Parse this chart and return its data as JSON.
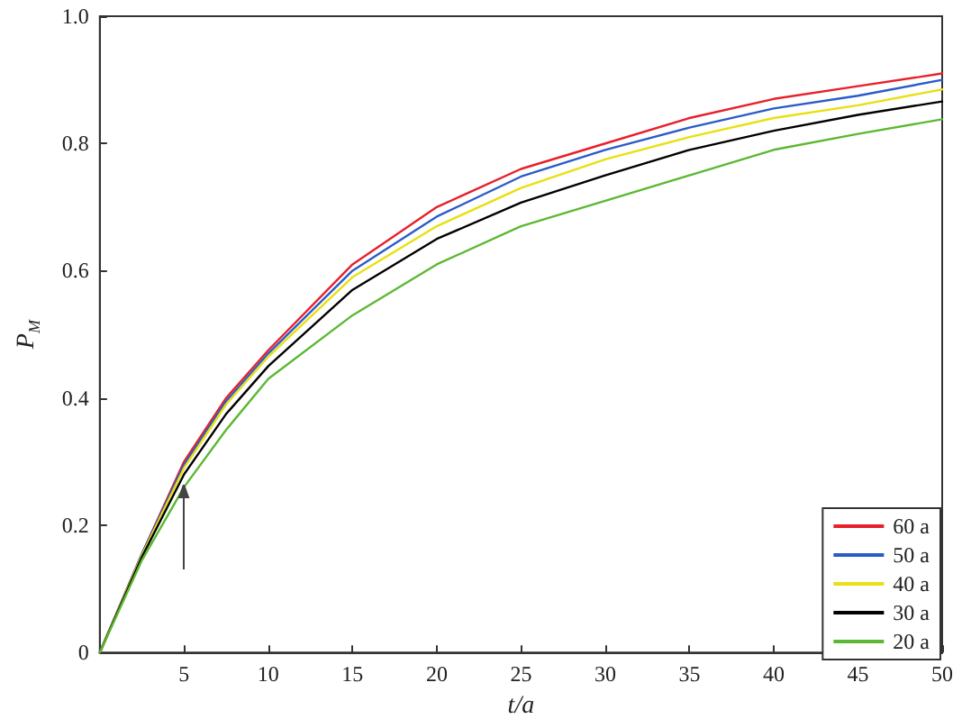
{
  "chart_data": {
    "type": "line",
    "xlabel": "t/a",
    "ylabel": "P$_{M}$",
    "x": [
      0,
      2.5,
      5,
      7.5,
      10,
      15,
      20,
      25,
      30,
      35,
      40,
      45,
      50
    ],
    "series": [
      {
        "name": "60 a",
        "color": "#e8202a",
        "values": [
          0,
          0.155,
          0.3,
          0.4,
          0.475,
          0.61,
          0.7,
          0.76,
          0.8,
          0.84,
          0.87,
          0.89,
          0.91
        ]
      },
      {
        "name": "50 a",
        "color": "#2a5cc8",
        "values": [
          0,
          0.155,
          0.295,
          0.395,
          0.47,
          0.6,
          0.685,
          0.748,
          0.79,
          0.825,
          0.855,
          0.875,
          0.9
        ]
      },
      {
        "name": "40 a",
        "color": "#e8e010",
        "values": [
          0,
          0.153,
          0.29,
          0.39,
          0.465,
          0.59,
          0.67,
          0.73,
          0.775,
          0.81,
          0.84,
          0.86,
          0.885
        ]
      },
      {
        "name": "30 a",
        "color": "#000000",
        "values": [
          0,
          0.15,
          0.28,
          0.375,
          0.45,
          0.57,
          0.65,
          0.707,
          0.75,
          0.79,
          0.82,
          0.845,
          0.866
        ]
      },
      {
        "name": "20 a",
        "color": "#5cb832",
        "values": [
          0,
          0.145,
          0.26,
          0.35,
          0.43,
          0.53,
          0.61,
          0.67,
          0.71,
          0.75,
          0.79,
          0.815,
          0.838
        ]
      }
    ],
    "xlim": [
      0,
      50
    ],
    "ylim": [
      0,
      1
    ],
    "xticks": [
      {
        "value": 0,
        "label": null
      },
      5,
      10,
      15,
      20,
      25,
      30,
      35,
      40,
      45,
      50
    ],
    "yticks": [
      0,
      {
        "value": 0.2,
        "label": "0.2"
      },
      {
        "value": 0.4,
        "label": "0.4"
      },
      {
        "value": 0.6,
        "label": "0.6"
      },
      {
        "value": 0.8,
        "label": "0.8"
      },
      {
        "value": 1,
        "label": "1.0"
      }
    ],
    "grid": false,
    "legend": "bottom right",
    "marker": "none",
    "line_style": "solid"
  }
}
